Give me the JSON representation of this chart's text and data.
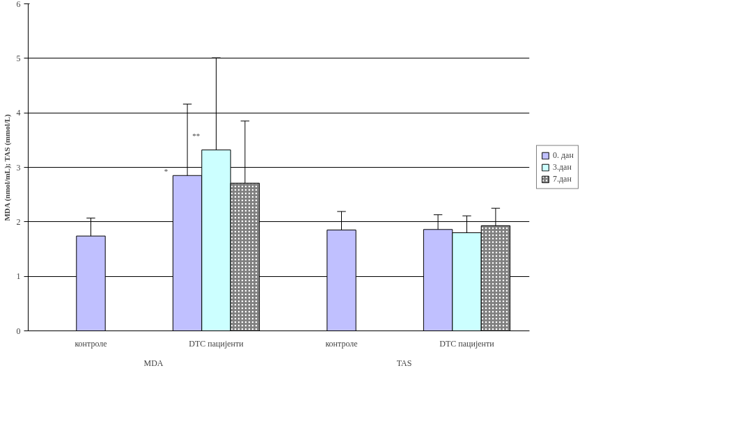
{
  "chart_data": {
    "type": "bar",
    "ylabel": "MDA (nmol/mL); TAS (mmol/L)",
    "categories": [
      "контроле",
      "DTC пацијенти",
      "контроле",
      "DTC пацијенти"
    ],
    "series": [
      {
        "name": "0. дан",
        "color": "#c0c0ff",
        "values": [
          1.74,
          2.85,
          1.85,
          1.86
        ],
        "errors": [
          [
            1.74,
            2.07
          ],
          [
            2.85,
            4.16
          ],
          [
            1.85,
            2.19
          ],
          [
            1.86,
            2.13
          ]
        ]
      },
      {
        "name": "3.дан",
        "color": "#ccffff",
        "values": [
          null,
          3.32,
          null,
          1.8
        ],
        "errors": [
          null,
          [
            3.32,
            5.01
          ],
          null,
          [
            1.8,
            2.11
          ]
        ]
      },
      {
        "name": "7.дан",
        "color": "#808080",
        "values": [
          null,
          2.71,
          null,
          1.93
        ],
        "errors": [
          null,
          [
            2.71,
            3.85
          ],
          null,
          [
            1.93,
            2.25
          ]
        ]
      }
    ],
    "annotations": [
      "*",
      "**",
      "MDA",
      "TAS"
    ],
    "ylim": [
      0,
      6
    ],
    "yticks": [
      0,
      1,
      2,
      3,
      4,
      5,
      6
    ],
    "grid": "y",
    "legend": "right"
  }
}
